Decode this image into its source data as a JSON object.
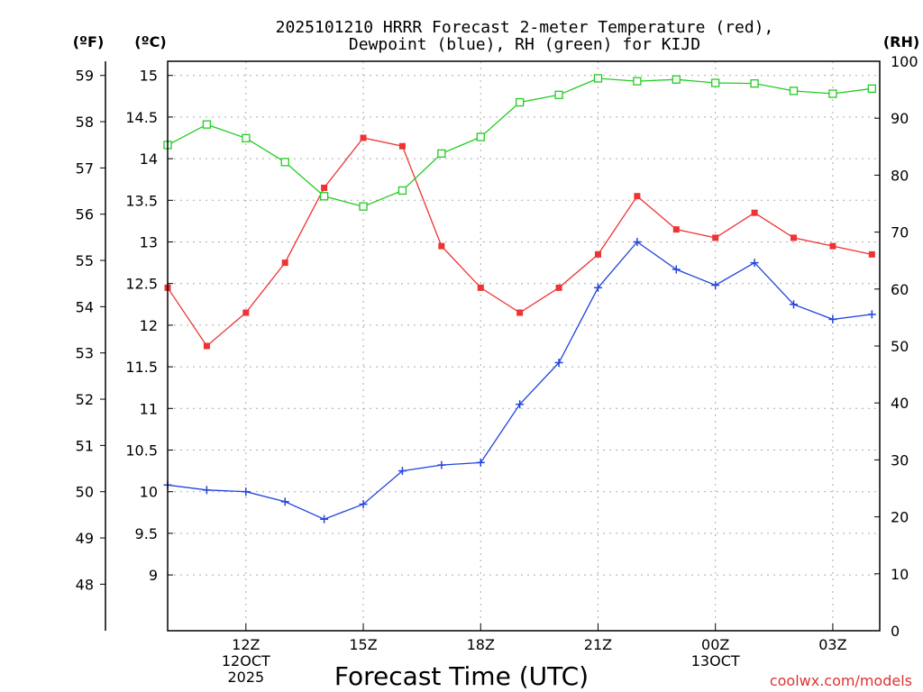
{
  "title_line1": "2025101210 HRRR Forecast 2-meter Temperature (red),",
  "title_line2": "Dewpoint (blue), RH (green) for KIJD",
  "unit_f": "(ºF)",
  "unit_c": "(ºC)",
  "unit_rh": "(RH)",
  "xlabel": "Forecast Time (UTC)",
  "credit": "coolwx.com/models",
  "colors": {
    "temperature": "#ee3333",
    "dewpoint": "#2244dd",
    "rh": "#22cc22",
    "grid": "#aaaaaa",
    "credit": "#dd3333"
  },
  "chart_data": {
    "type": "line",
    "title": "2025101210 HRRR Forecast 2-meter Temperature (red), Dewpoint (blue), RH (green) for KIJD",
    "xlabel": "Forecast Time (UTC)",
    "x_hours": [
      10,
      11,
      12,
      13,
      14,
      15,
      16,
      17,
      18,
      19,
      20,
      21,
      22,
      23,
      24,
      25,
      26,
      27,
      28
    ],
    "xlim": [
      10,
      28.2
    ],
    "x_ticks": [
      {
        "hour": 12,
        "lines": [
          "12Z",
          "12OCT",
          "2025"
        ]
      },
      {
        "hour": 15,
        "lines": [
          "15Z"
        ]
      },
      {
        "hour": 18,
        "lines": [
          "18Z"
        ]
      },
      {
        "hour": 21,
        "lines": [
          "21Z"
        ]
      },
      {
        "hour": 24,
        "lines": [
          "00Z",
          "13OCT"
        ]
      },
      {
        "hour": 27,
        "lines": [
          "03Z"
        ]
      }
    ],
    "y_celsius": {
      "label": "(ºC)",
      "ylim": [
        8.33,
        15.17
      ],
      "ticks": [
        "9",
        "9.5",
        "10",
        "10.5",
        "11",
        "11.5",
        "12",
        "12.5",
        "13",
        "13.5",
        "14",
        "14.5",
        "15"
      ]
    },
    "y_fahrenheit": {
      "label": "(ºF)",
      "ticks": [
        "48",
        "49",
        "50",
        "51",
        "52",
        "53",
        "54",
        "55",
        "56",
        "57",
        "58",
        "59"
      ]
    },
    "y_rh": {
      "label": "(RH)",
      "ylim": [
        0,
        100
      ],
      "ticks": [
        "0",
        "10",
        "20",
        "30",
        "40",
        "50",
        "60",
        "70",
        "80",
        "90",
        "100"
      ]
    },
    "series": [
      {
        "name": "Temperature",
        "axis": "celsius",
        "color": "#ee3333",
        "marker": "filled-square",
        "values": [
          12.45,
          11.75,
          12.15,
          12.75,
          13.65,
          14.25,
          14.15,
          12.95,
          12.45,
          12.15,
          12.45,
          12.85,
          13.55,
          13.15,
          13.05,
          13.35,
          13.05,
          12.95,
          12.85
        ]
      },
      {
        "name": "Dewpoint",
        "axis": "celsius",
        "color": "#2244dd",
        "marker": "plus",
        "values": [
          10.08,
          10.02,
          10.0,
          9.88,
          9.67,
          9.85,
          10.25,
          10.32,
          10.35,
          11.05,
          11.55,
          12.45,
          13.0,
          12.67,
          12.48,
          12.75,
          12.25,
          12.07,
          12.13
        ]
      },
      {
        "name": "RH",
        "axis": "rh",
        "color": "#22cc22",
        "marker": "open-square",
        "values": [
          85.3,
          88.9,
          86.5,
          82.3,
          76.3,
          74.5,
          77.3,
          83.8,
          86.7,
          92.8,
          94.1,
          97.0,
          96.5,
          96.8,
          96.2,
          96.1,
          94.8,
          94.3,
          95.2
        ]
      }
    ]
  }
}
